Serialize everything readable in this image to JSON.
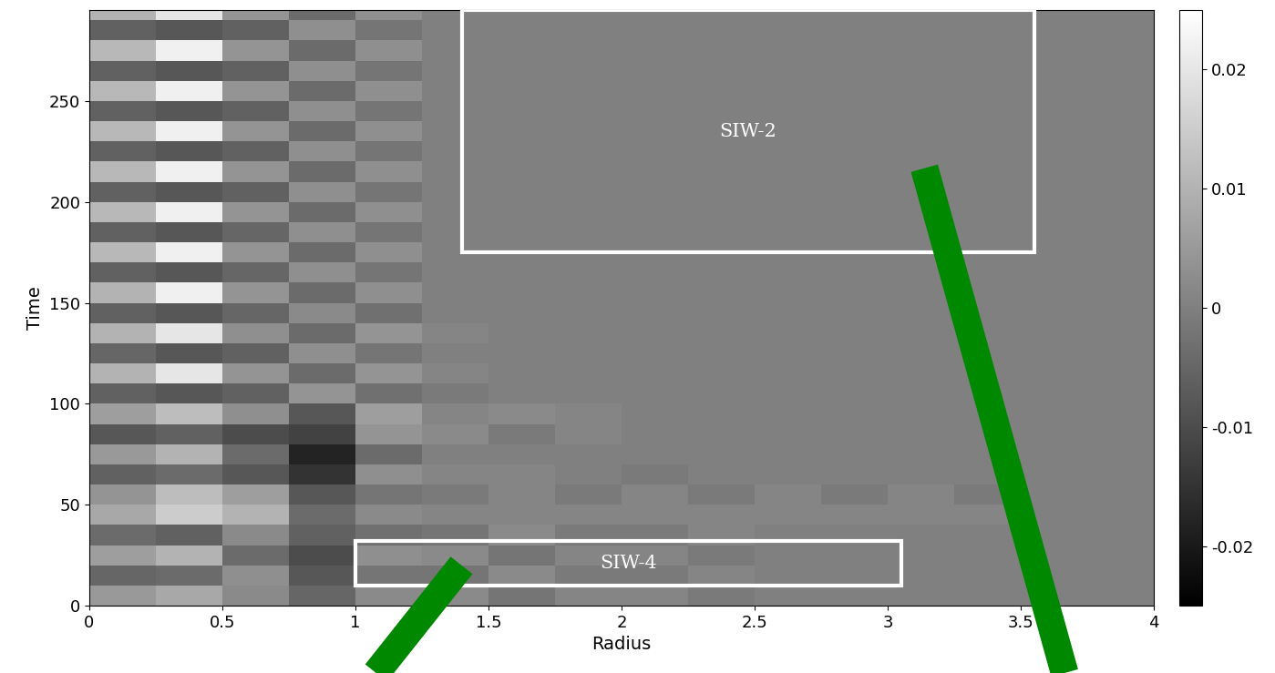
{
  "chart_data": {
    "type": "heatmap",
    "xlabel": "Radius",
    "ylabel": "Time",
    "xlim": [
      0,
      4
    ],
    "ylim": [
      0,
      295
    ],
    "xticks": [
      0,
      0.5,
      1,
      1.5,
      2,
      2.5,
      3,
      3.5,
      4
    ],
    "yticks": [
      0,
      50,
      100,
      150,
      200,
      250
    ],
    "color": "gray",
    "x_edges": [
      0,
      0.25,
      0.5,
      0.75,
      1,
      1.25,
      1.5,
      1.75,
      2,
      2.25,
      2.5,
      2.75,
      3,
      3.25,
      3.5,
      3.75,
      4
    ],
    "y_edges": [
      0,
      10,
      20,
      30,
      40,
      50,
      60,
      70,
      80,
      90,
      100,
      110,
      120,
      130,
      140,
      150,
      160,
      170,
      180,
      190,
      200,
      210,
      220,
      230,
      240,
      250,
      260,
      270,
      280,
      290,
      300
    ],
    "cells": [
      [
        0.005,
        0.008,
        0.002,
        -0.005,
        0.002,
        0.002,
        -0.002,
        0.001,
        0.001,
        -0.001,
        0,
        0,
        0,
        0,
        0,
        0
      ],
      [
        -0.005,
        -0.004,
        0.003,
        -0.008,
        -0.002,
        -0.002,
        0.002,
        -0.001,
        -0.001,
        0.001,
        0,
        0,
        0,
        0,
        0,
        0
      ],
      [
        0.006,
        0.01,
        -0.004,
        -0.01,
        0.003,
        0.002,
        -0.002,
        0.001,
        0.001,
        -0.001,
        0,
        0,
        0,
        0,
        0,
        0
      ],
      [
        -0.004,
        -0.006,
        0.002,
        -0.006,
        -0.003,
        -0.002,
        0.002,
        -0.001,
        -0.001,
        0.001,
        0,
        0,
        0,
        0,
        0,
        0
      ],
      [
        0.008,
        0.015,
        0.01,
        -0.004,
        0.002,
        0.001,
        0.001,
        0.001,
        0.001,
        0.001,
        0.001,
        0.001,
        0.001,
        0.001,
        0,
        0
      ],
      [
        0.004,
        0.012,
        0.006,
        -0.008,
        -0.002,
        -0.001,
        0.001,
        -0.001,
        0.001,
        -0.001,
        0.001,
        -0.001,
        0.001,
        -0.001,
        0,
        0
      ],
      [
        -0.006,
        -0.004,
        -0.008,
        -0.015,
        0.003,
        0.001,
        0.001,
        0,
        -0.001,
        0,
        0,
        0,
        0,
        0,
        0,
        0
      ],
      [
        0.005,
        0.01,
        -0.004,
        -0.018,
        -0.004,
        0,
        0,
        0,
        0,
        0,
        0,
        0,
        0,
        0,
        0,
        0
      ],
      [
        -0.008,
        -0.006,
        -0.01,
        -0.012,
        0.004,
        0.002,
        -0.001,
        0.001,
        0,
        0,
        0,
        0,
        0,
        0,
        0,
        0
      ],
      [
        0.006,
        0.012,
        0.003,
        -0.008,
        0.006,
        0.001,
        0.002,
        0.001,
        0,
        0,
        0,
        0,
        0,
        0,
        0,
        0
      ],
      [
        -0.006,
        -0.008,
        -0.006,
        0.004,
        -0.003,
        -0.001,
        0,
        0,
        0,
        0,
        0,
        0,
        0,
        0,
        0,
        0
      ],
      [
        0.01,
        0.02,
        0.004,
        -0.004,
        0.004,
        0.001,
        0,
        0,
        0,
        0,
        0,
        0,
        0,
        0,
        0,
        0
      ],
      [
        -0.005,
        -0.008,
        -0.006,
        0.003,
        -0.002,
        0,
        0,
        0,
        0,
        0,
        0,
        0,
        0,
        0,
        0,
        0
      ],
      [
        0.01,
        0.02,
        0.003,
        -0.004,
        0.004,
        0.001,
        0,
        0,
        0,
        0,
        0,
        0,
        0,
        0,
        0,
        0
      ],
      [
        -0.006,
        -0.008,
        -0.005,
        0.002,
        -0.003,
        0,
        0,
        0,
        0,
        0,
        0,
        0,
        0,
        0,
        0,
        0
      ],
      [
        0.01,
        0.022,
        0.004,
        -0.004,
        0.003,
        0,
        0,
        0,
        0,
        0,
        0,
        0,
        0,
        0,
        0,
        0
      ],
      [
        -0.006,
        -0.008,
        -0.005,
        0.003,
        -0.002,
        0,
        0,
        0,
        0,
        0,
        0,
        0,
        0,
        0,
        0,
        0
      ],
      [
        0.011,
        0.022,
        0.004,
        -0.004,
        0.003,
        0,
        0,
        0,
        0,
        0,
        0,
        0,
        0,
        0,
        0,
        0
      ],
      [
        -0.006,
        -0.008,
        -0.005,
        0.003,
        -0.002,
        0,
        0,
        0,
        0,
        0,
        0,
        0,
        0,
        0,
        0,
        0
      ],
      [
        0.011,
        0.022,
        0.004,
        -0.004,
        0.003,
        0,
        0,
        0,
        0,
        0,
        0,
        0,
        0,
        0,
        0,
        0
      ],
      [
        -0.006,
        -0.008,
        -0.006,
        0.003,
        -0.002,
        0,
        0,
        0,
        0,
        0,
        0,
        0,
        0,
        0,
        0,
        0
      ],
      [
        0.011,
        0.022,
        0.004,
        -0.004,
        0.003,
        0,
        0,
        0,
        0,
        0,
        0,
        0,
        0,
        0,
        0,
        0
      ],
      [
        -0.006,
        -0.008,
        -0.006,
        0.003,
        -0.002,
        0,
        0,
        0,
        0,
        0,
        0,
        0,
        0,
        0,
        0,
        0
      ],
      [
        0.011,
        0.022,
        0.004,
        -0.004,
        0.003,
        0,
        0,
        0,
        0,
        0,
        0,
        0,
        0,
        0,
        0,
        0
      ],
      [
        -0.006,
        -0.008,
        -0.006,
        0.003,
        -0.002,
        0,
        0,
        0,
        0,
        0,
        0,
        0,
        0,
        0,
        0,
        0
      ],
      [
        0.011,
        0.022,
        0.004,
        -0.004,
        0.003,
        0,
        0,
        0,
        0,
        0,
        0,
        0,
        0,
        0,
        0,
        0
      ],
      [
        -0.006,
        -0.008,
        -0.006,
        0.003,
        -0.002,
        0,
        0,
        0,
        0,
        0,
        0,
        0,
        0,
        0,
        0,
        0
      ],
      [
        0.011,
        0.022,
        0.004,
        -0.004,
        0.003,
        0,
        0,
        0,
        0,
        0,
        0,
        0,
        0,
        0,
        0,
        0
      ],
      [
        -0.006,
        -0.008,
        -0.006,
        0.003,
        -0.002,
        0,
        0,
        0,
        0,
        0,
        0,
        0,
        0,
        0,
        0,
        0
      ],
      [
        0.01,
        0.02,
        0.004,
        -0.004,
        0.003,
        0,
        0,
        0,
        0,
        0,
        0,
        0,
        0,
        0,
        0,
        0
      ]
    ],
    "colorbar": {
      "lim": [
        -0.025,
        0.025
      ],
      "ticks": [
        -0.02,
        -0.01,
        0,
        0.01,
        0.02
      ]
    },
    "annotations": [
      {
        "text": "SIW-2",
        "x": [
          1.4,
          3.55
        ],
        "y": [
          175,
          295
        ]
      },
      {
        "text": "SIW-4",
        "x": [
          1.0,
          3.05
        ],
        "y": [
          10,
          32
        ]
      }
    ]
  }
}
